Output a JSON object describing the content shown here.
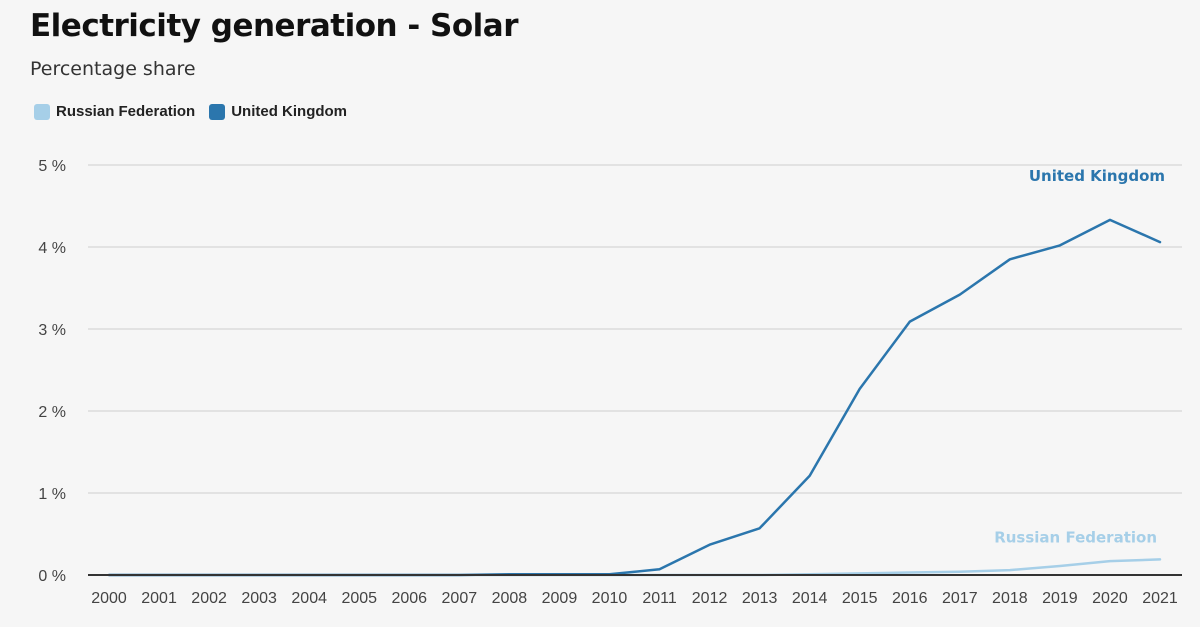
{
  "title": "Electricity generation - Solar",
  "subtitle": "Percentage share",
  "legend": [
    {
      "name": "Russian Federation",
      "color": "#a6cfe8"
    },
    {
      "name": "United Kingdom",
      "color": "#2b76ad"
    }
  ],
  "chart_data": {
    "type": "line",
    "title": "Electricity generation - Solar",
    "subtitle": "Percentage share",
    "xlabel": "",
    "ylabel": "",
    "ylim": [
      0,
      5
    ],
    "y_ticks": [
      0,
      1,
      2,
      3,
      4,
      5
    ],
    "y_tick_labels": [
      "0 %",
      "1 %",
      "2 %",
      "3 %",
      "4 %",
      "5 %"
    ],
    "x": [
      "2000",
      "2001",
      "2002",
      "2003",
      "2004",
      "2005",
      "2006",
      "2007",
      "2008",
      "2009",
      "2010",
      "2011",
      "2012",
      "2013",
      "2014",
      "2015",
      "2016",
      "2017",
      "2018",
      "2019",
      "2020",
      "2021"
    ],
    "series": [
      {
        "name": "Russian Federation",
        "color": "#a6cfe8",
        "values": [
          0,
          0,
          0,
          0,
          0,
          0,
          0,
          0,
          0,
          0,
          0,
          0,
          0,
          0,
          0.01,
          0.02,
          0.03,
          0.04,
          0.06,
          0.11,
          0.17,
          0.19
        ]
      },
      {
        "name": "United Kingdom",
        "color": "#2b76ad",
        "values": [
          0,
          0,
          0,
          0,
          0,
          0,
          0,
          0,
          0.01,
          0.01,
          0.01,
          0.07,
          0.37,
          0.57,
          1.21,
          2.27,
          3.09,
          3.42,
          3.85,
          4.02,
          4.33,
          4.06
        ]
      }
    ],
    "annotations": [
      {
        "text": "United Kingdom",
        "series": "United Kingdom"
      },
      {
        "text": "Russian Federation",
        "series": "Russian Federation"
      }
    ],
    "grid": true,
    "legend_position": "top-left"
  }
}
